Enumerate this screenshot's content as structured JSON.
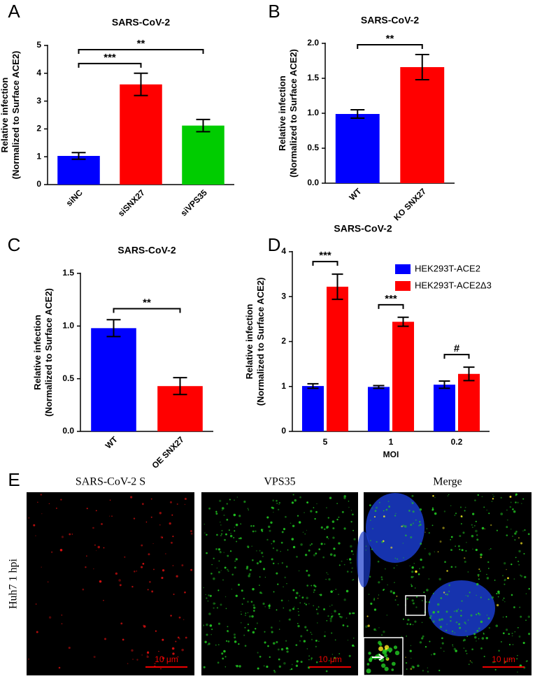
{
  "chart_data": [
    {
      "type": "bar",
      "letter": "A",
      "title": "SARS-CoV-2",
      "ylabel": [
        "Relative infection",
        "(Normalized to Surface ACE2)"
      ],
      "categories": [
        "siNC",
        "siSNX27",
        "siVPS35"
      ],
      "values": [
        1.03,
        3.6,
        2.12
      ],
      "errors": [
        0.12,
        0.4,
        0.22
      ],
      "colors": [
        "#0000ff",
        "#ff0000",
        "#00cc00"
      ],
      "ylim": [
        0,
        5
      ],
      "yticks": [
        0,
        1,
        2,
        3,
        4,
        5
      ],
      "annotations": [
        {
          "text": "***",
          "between": [
            "siNC",
            "siSNX27"
          ]
        },
        {
          "text": "**",
          "between": [
            "siNC",
            "siVPS35"
          ]
        }
      ]
    },
    {
      "type": "bar",
      "letter": "B",
      "title": "SARS-CoV-2",
      "ylabel": [
        "Relative infection",
        "(Normalized to Surface ACE2)"
      ],
      "categories": [
        "WT",
        "KO SNX27"
      ],
      "values": [
        0.99,
        1.66
      ],
      "errors": [
        0.06,
        0.18
      ],
      "colors": [
        "#0000ff",
        "#ff0000"
      ],
      "ylim": [
        0,
        2
      ],
      "yticks": [
        {
          "value": 0,
          "label": "0.0"
        },
        0.5,
        {
          "value": 1,
          "label": "1.0"
        },
        1.5,
        {
          "value": 2,
          "label": "2.0"
        }
      ],
      "annotations": [
        {
          "text": "**",
          "between": [
            "WT",
            "KO SNX27"
          ]
        }
      ]
    },
    {
      "type": "bar",
      "letter": "C",
      "title": "SARS-CoV-2",
      "ylabel": [
        "Relative infection",
        "(Normalized to Surface ACE2)"
      ],
      "categories": [
        "WT",
        "OE SNX27"
      ],
      "values": [
        0.98,
        0.43
      ],
      "errors": [
        0.08,
        0.08
      ],
      "colors": [
        "#0000ff",
        "#ff0000"
      ],
      "ylim": [
        0,
        1.5
      ],
      "yticks": [
        {
          "value": 0,
          "label": "0.0"
        },
        0.5,
        {
          "value": 1,
          "label": "1.0"
        },
        1.5
      ],
      "annotations": [
        {
          "text": "**",
          "between": [
            "WT",
            "OE SNX27"
          ]
        }
      ]
    },
    {
      "type": "grouped-bar",
      "letter": "D",
      "title": "SARS-CoV-2",
      "ylabel": [
        "Relative infection",
        "(Normalized to Surface ACE2)"
      ],
      "xlabel": "MOI",
      "categories": [
        "5",
        "1",
        "0.2"
      ],
      "series": [
        {
          "name": "HEK293T-ACE2",
          "color": "#0000ff",
          "values": [
            1.01,
            0.99,
            1.04
          ],
          "errors": [
            0.05,
            0.03,
            0.08
          ]
        },
        {
          "name": "HEK293T-ACE2Δ3",
          "color": "#ff0000",
          "values": [
            3.22,
            2.44,
            1.28
          ],
          "errors": [
            0.28,
            0.1,
            0.15
          ]
        }
      ],
      "ylim": [
        0,
        4
      ],
      "yticks": [
        0,
        1,
        2,
        3,
        4
      ],
      "annotations": [
        {
          "text": "***",
          "group": "5"
        },
        {
          "text": "***",
          "group": "1"
        },
        {
          "text": "#",
          "group": "0.2"
        }
      ]
    }
  ],
  "micrographs": {
    "letter": "E",
    "row_label": "Huh7 1 hpi",
    "panels": [
      {
        "label": "SARS-CoV-2  S",
        "scale": "10 μm"
      },
      {
        "label": "VPS35",
        "scale": "10 μm"
      },
      {
        "label": "Merge",
        "scale": "10 μm"
      }
    ]
  }
}
